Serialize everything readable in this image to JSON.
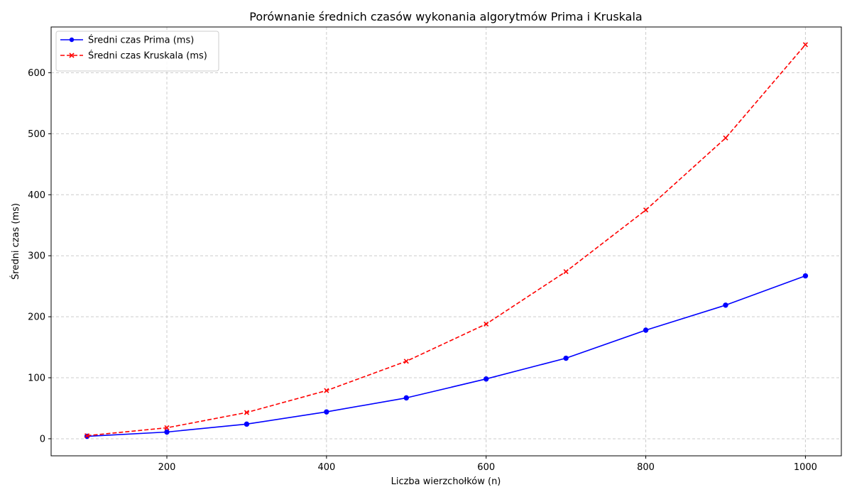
{
  "chart_data": {
    "type": "line",
    "title": "Porównanie średnich czasów wykonania algorytmów Prima i Kruskala",
    "xlabel": "Liczba wierzchołków (n)",
    "ylabel": "Średni czas (ms)",
    "xlim": [
      55,
      1045
    ],
    "ylim": [
      -28,
      675
    ],
    "xticks": [
      200,
      400,
      600,
      800,
      1000
    ],
    "yticks": [
      0,
      100,
      200,
      300,
      400,
      500,
      600
    ],
    "grid": true,
    "legend_position": "upper-left",
    "x": [
      100,
      200,
      300,
      400,
      500,
      600,
      700,
      800,
      900,
      1000
    ],
    "series": [
      {
        "name": "Średni czas Prima (ms)",
        "color": "#0000ff",
        "line_style": "solid",
        "marker": "circle",
        "values": [
          4,
          11,
          24,
          44,
          67,
          98,
          132,
          178,
          219,
          267
        ]
      },
      {
        "name": "Średni czas Kruskala (ms)",
        "color": "#ff0000",
        "line_style": "dashed",
        "marker": "x",
        "values": [
          5,
          18,
          43,
          79,
          127,
          188,
          274,
          375,
          493,
          646
        ]
      }
    ]
  }
}
